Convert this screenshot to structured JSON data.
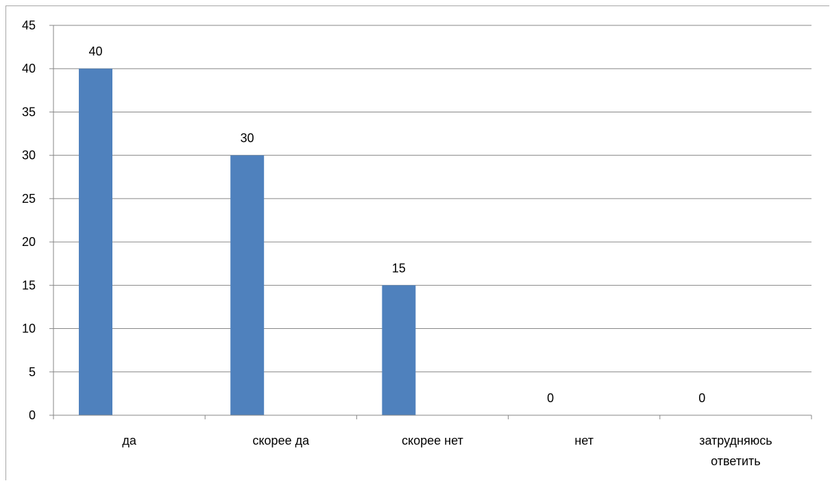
{
  "chart_data": {
    "type": "bar",
    "categories": [
      "да",
      "скорее да",
      "скорее нет",
      "нет",
      "затрудняюсь ответить"
    ],
    "category_lines": [
      [
        "да"
      ],
      [
        "скорее да"
      ],
      [
        "скорее нет"
      ],
      [
        "нет"
      ],
      [
        "затрудняюсь",
        "ответить"
      ]
    ],
    "values": [
      40,
      30,
      15,
      0,
      0
    ],
    "data_labels": [
      "40",
      "30",
      "15",
      "0",
      "0"
    ],
    "ylim": [
      0,
      45
    ],
    "yticks": [
      0,
      5,
      10,
      15,
      20,
      25,
      30,
      35,
      40,
      45
    ],
    "bar_color": "#4f81bd",
    "grid": true,
    "legend": "none"
  }
}
